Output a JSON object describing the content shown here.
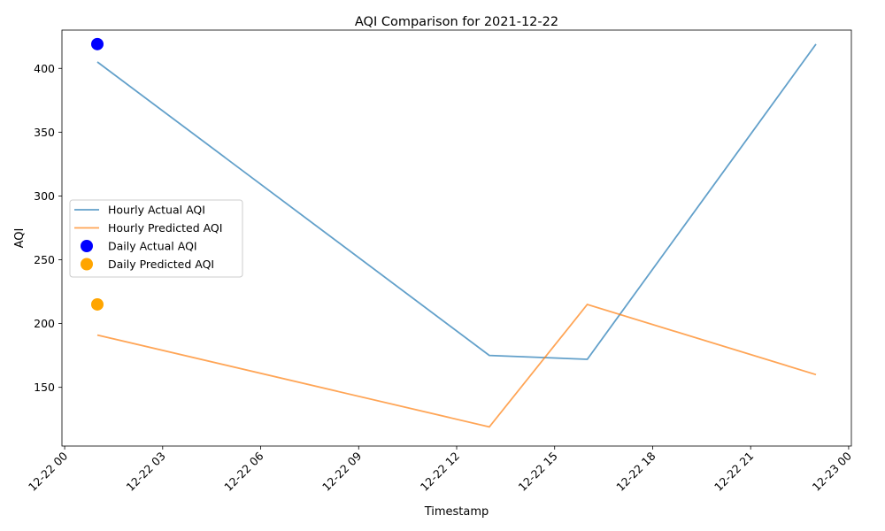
{
  "chart_data": {
    "type": "line",
    "title": "AQI Comparison for 2021-12-22",
    "xlabel": "Timestamp",
    "ylabel": "AQI",
    "xlim": [
      "2021-12-21T23:55",
      "2021-12-23T00:05"
    ],
    "ylim": [
      104,
      430
    ],
    "x_ticks": [
      "2021-12-22T00:00",
      "2021-12-22T03:00",
      "2021-12-22T06:00",
      "2021-12-22T09:00",
      "2021-12-22T12:00",
      "2021-12-22T15:00",
      "2021-12-22T18:00",
      "2021-12-22T21:00",
      "2021-12-23T00:00"
    ],
    "x_tick_labels": [
      "12-22 00",
      "12-22 03",
      "12-22 06",
      "12-22 09",
      "12-22 12",
      "12-22 15",
      "12-22 18",
      "12-22 21",
      "12-23 00"
    ],
    "y_ticks": [
      150,
      200,
      250,
      300,
      350,
      400
    ],
    "y_tick_labels": [
      "150",
      "200",
      "250",
      "300",
      "350",
      "400"
    ],
    "series": [
      {
        "name": "Hourly Actual AQI",
        "kind": "line",
        "color": "#1f77b4",
        "x": [
          "2021-12-22T01:00",
          "2021-12-22T13:00",
          "2021-12-22T16:00",
          "2021-12-22T23:00"
        ],
        "y": [
          405,
          175,
          172,
          419
        ]
      },
      {
        "name": "Hourly Predicted AQI",
        "kind": "line",
        "color": "#ff7f0e",
        "x": [
          "2021-12-22T01:00",
          "2021-12-22T13:00",
          "2021-12-22T16:00",
          "2021-12-22T23:00"
        ],
        "y": [
          191,
          119,
          215,
          160
        ]
      },
      {
        "name": "Daily Actual AQI",
        "kind": "scatter",
        "color": "#0000ff",
        "x": [
          "2021-12-22T01:00"
        ],
        "y": [
          419
        ]
      },
      {
        "name": "Daily Predicted AQI",
        "kind": "scatter",
        "color": "#ffa500",
        "x": [
          "2021-12-22T01:00"
        ],
        "y": [
          215
        ]
      }
    ],
    "legend_position": "center-left",
    "grid": false
  }
}
